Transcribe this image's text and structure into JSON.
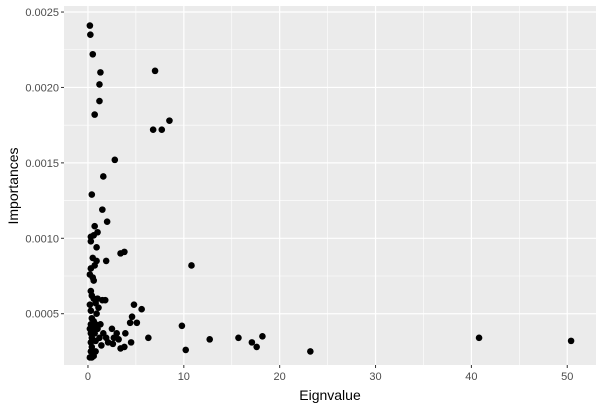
{
  "chart_data": {
    "type": "scatter",
    "title": "",
    "xlabel": "Eignvalue",
    "ylabel": "Importances",
    "xlim": [
      -2.5,
      53.0
    ],
    "ylim": [
      0.00016,
      0.00254
    ],
    "x_ticks": [
      0,
      10,
      20,
      30,
      40,
      50
    ],
    "x_tick_labels": [
      "0",
      "10",
      "20",
      "30",
      "40",
      "50"
    ],
    "y_ticks": [
      0.0005,
      0.001,
      0.0015,
      0.002,
      0.0025
    ],
    "y_tick_labels": [
      "0.0005",
      "0.0010",
      "0.0015",
      "0.0020",
      "0.0025"
    ],
    "grid": true,
    "panel_background": "#ebebeb",
    "grid_color": "#ffffff",
    "point_color": "#000000",
    "points": [
      {
        "x": 0.2,
        "y": 0.00241
      },
      {
        "x": 0.25,
        "y": 0.00235
      },
      {
        "x": 0.5,
        "y": 0.00222
      },
      {
        "x": 1.3,
        "y": 0.0021
      },
      {
        "x": 1.2,
        "y": 0.00202
      },
      {
        "x": 1.2,
        "y": 0.00191
      },
      {
        "x": 0.7,
        "y": 0.00182
      },
      {
        "x": 7.0,
        "y": 0.00211
      },
      {
        "x": 8.5,
        "y": 0.00178
      },
      {
        "x": 6.8,
        "y": 0.00172
      },
      {
        "x": 7.7,
        "y": 0.00172
      },
      {
        "x": 2.8,
        "y": 0.00152
      },
      {
        "x": 1.6,
        "y": 0.00141
      },
      {
        "x": 0.4,
        "y": 0.00129
      },
      {
        "x": 1.5,
        "y": 0.00119
      },
      {
        "x": 2.0,
        "y": 0.00111
      },
      {
        "x": 0.7,
        "y": 0.00108
      },
      {
        "x": 0.3,
        "y": 0.00101
      },
      {
        "x": 0.6,
        "y": 0.00102
      },
      {
        "x": 1.0,
        "y": 0.00104
      },
      {
        "x": 0.3,
        "y": 0.00098
      },
      {
        "x": 0.9,
        "y": 0.00094
      },
      {
        "x": 3.4,
        "y": 0.0009
      },
      {
        "x": 3.8,
        "y": 0.00091
      },
      {
        "x": 0.5,
        "y": 0.00087
      },
      {
        "x": 0.9,
        "y": 0.00085
      },
      {
        "x": 1.9,
        "y": 0.00085
      },
      {
        "x": 0.7,
        "y": 0.00082
      },
      {
        "x": 0.3,
        "y": 0.0008
      },
      {
        "x": 10.8,
        "y": 0.00082
      },
      {
        "x": 0.2,
        "y": 0.00076
      },
      {
        "x": 0.5,
        "y": 0.00074
      },
      {
        "x": 0.6,
        "y": 0.00072
      },
      {
        "x": 0.3,
        "y": 0.00065
      },
      {
        "x": 0.4,
        "y": 0.00062
      },
      {
        "x": 0.6,
        "y": 0.0006
      },
      {
        "x": 1.0,
        "y": 0.0006
      },
      {
        "x": 1.5,
        "y": 0.00059
      },
      {
        "x": 1.8,
        "y": 0.00059
      },
      {
        "x": 0.2,
        "y": 0.00056
      },
      {
        "x": 0.8,
        "y": 0.00057
      },
      {
        "x": 1.1,
        "y": 0.00054
      },
      {
        "x": 4.8,
        "y": 0.00056
      },
      {
        "x": 5.6,
        "y": 0.00053
      },
      {
        "x": 0.3,
        "y": 0.00052
      },
      {
        "x": 0.9,
        "y": 0.0005
      },
      {
        "x": 4.6,
        "y": 0.00048
      },
      {
        "x": 0.4,
        "y": 0.00047
      },
      {
        "x": 0.6,
        "y": 0.00045
      },
      {
        "x": 0.3,
        "y": 0.00043
      },
      {
        "x": 0.8,
        "y": 0.00043
      },
      {
        "x": 1.3,
        "y": 0.00043
      },
      {
        "x": 4.4,
        "y": 0.00044
      },
      {
        "x": 5.1,
        "y": 0.00044
      },
      {
        "x": 0.2,
        "y": 0.0004
      },
      {
        "x": 0.5,
        "y": 0.0004
      },
      {
        "x": 1.0,
        "y": 0.0004
      },
      {
        "x": 2.5,
        "y": 0.0004
      },
      {
        "x": 9.8,
        "y": 0.00042
      },
      {
        "x": 0.3,
        "y": 0.00037
      },
      {
        "x": 0.7,
        "y": 0.00037
      },
      {
        "x": 1.6,
        "y": 0.00037
      },
      {
        "x": 3.0,
        "y": 0.00037
      },
      {
        "x": 3.9,
        "y": 0.00037
      },
      {
        "x": 0.4,
        "y": 0.00034
      },
      {
        "x": 1.2,
        "y": 0.00034
      },
      {
        "x": 1.9,
        "y": 0.00034
      },
      {
        "x": 2.7,
        "y": 0.00034
      },
      {
        "x": 6.3,
        "y": 0.00034
      },
      {
        "x": 15.7,
        "y": 0.00034
      },
      {
        "x": 18.2,
        "y": 0.00035
      },
      {
        "x": 40.8,
        "y": 0.00034
      },
      {
        "x": 0.3,
        "y": 0.00031
      },
      {
        "x": 0.8,
        "y": 0.00032
      },
      {
        "x": 2.1,
        "y": 0.00031
      },
      {
        "x": 3.2,
        "y": 0.00033
      },
      {
        "x": 4.5,
        "y": 0.00031
      },
      {
        "x": 12.7,
        "y": 0.00033
      },
      {
        "x": 17.1,
        "y": 0.00031
      },
      {
        "x": 50.4,
        "y": 0.00032
      },
      {
        "x": 0.4,
        "y": 0.00028
      },
      {
        "x": 1.4,
        "y": 0.00029
      },
      {
        "x": 2.6,
        "y": 0.0003
      },
      {
        "x": 3.4,
        "y": 0.00027
      },
      {
        "x": 3.8,
        "y": 0.00028
      },
      {
        "x": 17.6,
        "y": 0.00028
      },
      {
        "x": 0.3,
        "y": 0.00025
      },
      {
        "x": 0.8,
        "y": 0.00025
      },
      {
        "x": 10.2,
        "y": 0.00026
      },
      {
        "x": 23.2,
        "y": 0.00025
      },
      {
        "x": 0.2,
        "y": 0.00021
      },
      {
        "x": 0.4,
        "y": 0.00021
      },
      {
        "x": 0.6,
        "y": 0.00022
      }
    ]
  }
}
